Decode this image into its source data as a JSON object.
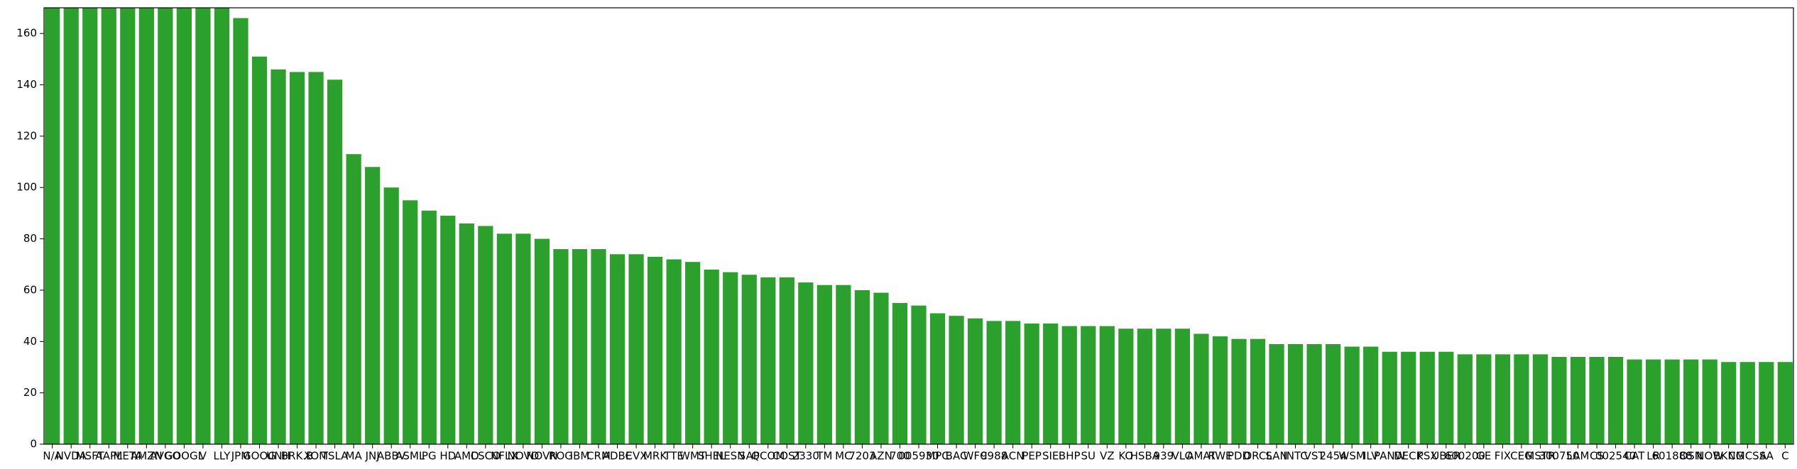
{
  "chart_data": {
    "type": "bar",
    "color": "#2ca02c",
    "categories": [
      "N/A",
      "NVDA",
      "MSFT",
      "AAPL",
      "META",
      "AMZN",
      "AVGO",
      "GOOGL",
      "V",
      "LLY",
      "JPM",
      "GOOG",
      "UNH",
      "BRK.B",
      "XOM",
      "TSLA",
      "MA",
      "JNJ",
      "ABBV",
      "ASML",
      "PG",
      "HD",
      "AMD",
      "CSCO",
      "NFLX",
      "NOVO",
      "NOVN",
      "ROG",
      "IBM",
      "CRM",
      "ADBE",
      "CVX",
      "MRK",
      "TTE",
      "WMT",
      "SHEL",
      "NESN",
      "SAP",
      "QCOM",
      "COST",
      "2330",
      "TM",
      "MC",
      "7203",
      "AZN",
      "700",
      "005930",
      "MPC",
      "BAC",
      "WFC",
      "9988",
      "ACN",
      "PEP",
      "SIE",
      "BHP",
      "SU",
      "VZ",
      "KO",
      "HSBA",
      "939",
      "VLO",
      "AMAT",
      "RWE",
      "PDD",
      "ORCL",
      "SAN",
      "INTC",
      "VST",
      "2454",
      "WSM",
      "ILV",
      "PANW",
      "DECK",
      "PSX",
      "UBER",
      "600200",
      "GE",
      "FIX",
      "CEG",
      "MSTR",
      "300750",
      "LAM",
      "CS",
      "002540",
      "CAT",
      "LR",
      "601888",
      "OSN",
      "NOW",
      "BKNG",
      "CMCSA",
      "SA",
      "C"
    ],
    "values": [
      180,
      180,
      180,
      180,
      180,
      180,
      180,
      180,
      180,
      180,
      166,
      151,
      146,
      145,
      145,
      142,
      113,
      108,
      100,
      95,
      91,
      89,
      86,
      85,
      82,
      82,
      80,
      76,
      76,
      76,
      74,
      74,
      73,
      72,
      71,
      68,
      67,
      66,
      65,
      65,
      63,
      62,
      62,
      60,
      59,
      55,
      54,
      51,
      50,
      49,
      48,
      48,
      47,
      47,
      46,
      46,
      46,
      45,
      45,
      45,
      45,
      43,
      42,
      41,
      41,
      39,
      39,
      39,
      39,
      38,
      38,
      36,
      36,
      36,
      36,
      35,
      35,
      35,
      35,
      35,
      34,
      34,
      34,
      34,
      33,
      33,
      33,
      33,
      33,
      32,
      32,
      32,
      32
    ],
    "ylim": [
      0,
      170
    ],
    "yticks": [
      0,
      20,
      40,
      60,
      80,
      100,
      120,
      140,
      160
    ]
  }
}
